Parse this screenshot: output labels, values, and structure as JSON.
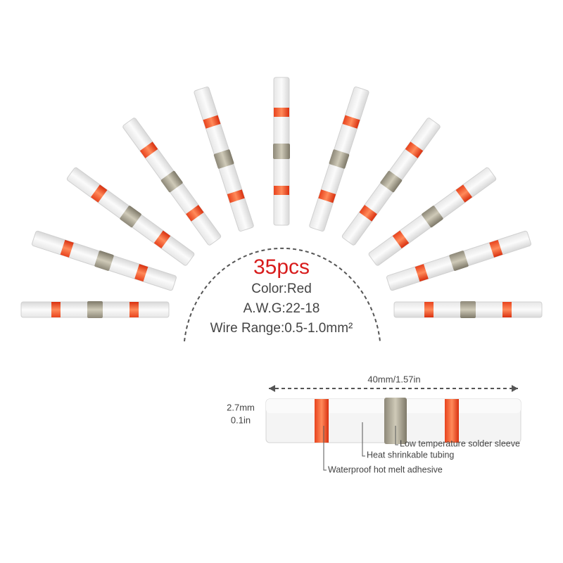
{
  "headline": "35pcs",
  "specs": [
    "Color:Red",
    "A.W.G:22-18",
    "Wire  Range:0.5-1.0mm²"
  ],
  "dimensions": {
    "length": "40mm/1.57in",
    "diameter": [
      "2.7mm",
      "0.1in"
    ]
  },
  "callouts": [
    "Low temperature solder sleeve",
    "Heat shrinkable tubing",
    "Waterproof hot melt adhesive"
  ]
}
